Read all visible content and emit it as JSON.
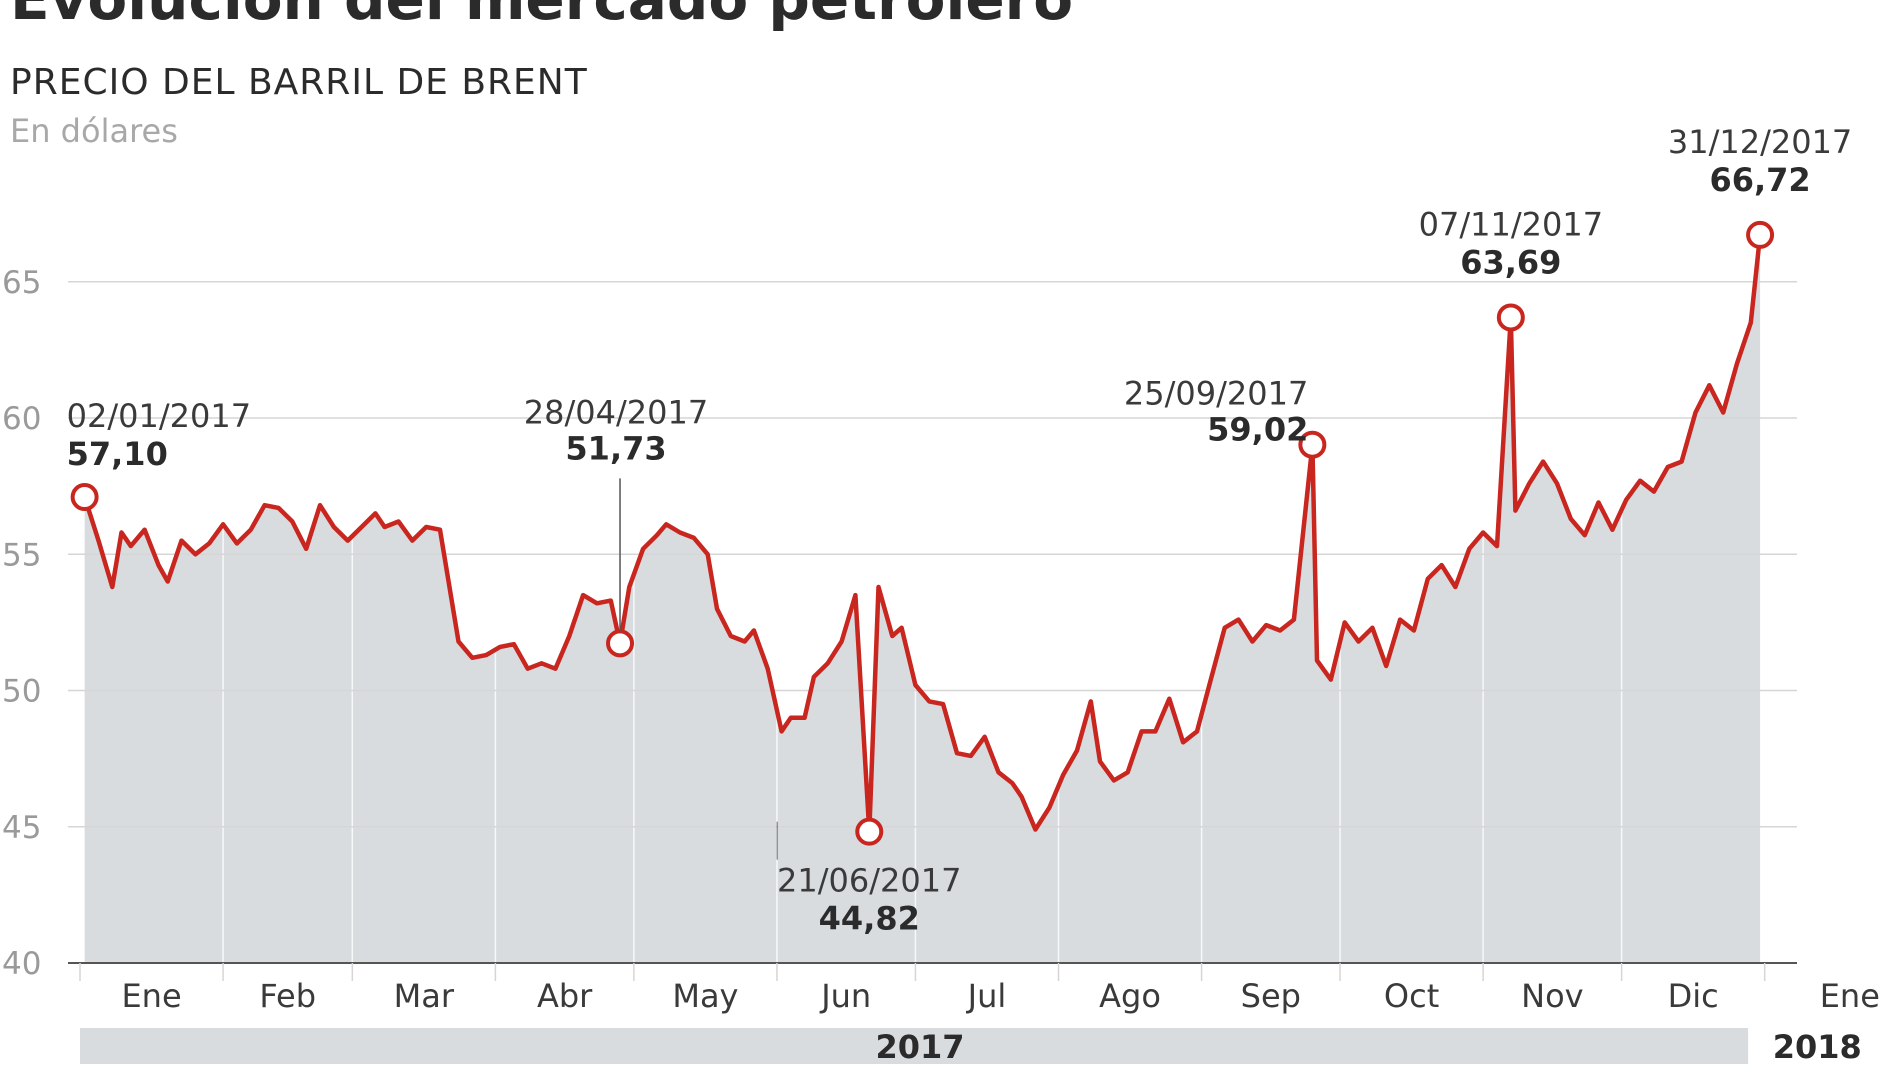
{
  "header": {
    "title": "Evolución del mercado petrolero",
    "subtitle": "PRECIO DEL BARRIL DE BRENT",
    "unit": "En dólares"
  },
  "colors": {
    "line": "#c8261e",
    "area": "#d8dcdf",
    "grid": "#d6d6d6",
    "axis": "#555555",
    "year_band": "#d8dcdf"
  },
  "chart_data": {
    "type": "area",
    "title": "Evolución del mercado petrolero",
    "subtitle": "PRECIO DEL BARRIL DE BRENT",
    "ylabel": "En dólares",
    "xlabel": "",
    "ylim": [
      40,
      68
    ],
    "yticks": [
      40,
      45,
      50,
      55,
      60,
      65
    ],
    "xlim": [
      "2017-01-01",
      "2018-01-08"
    ],
    "grid": true,
    "month_labels": [
      "Ene",
      "Feb",
      "Mar",
      "Abr",
      "May",
      "Jun",
      "Jul",
      "Ago",
      "Sep",
      "Oct",
      "Nov",
      "Dic",
      "Ene"
    ],
    "month_starts": [
      "2017-01-01",
      "2017-02-01",
      "2017-03-01",
      "2017-04-01",
      "2017-05-01",
      "2017-06-01",
      "2017-07-01",
      "2017-08-01",
      "2017-09-01",
      "2017-10-01",
      "2017-11-01",
      "2017-12-01",
      "2018-01-01"
    ],
    "years": [
      {
        "label": "2017",
        "start": "2017-01-01",
        "end": "2017-12-31"
      },
      {
        "label": "2018",
        "start": "2018-01-01",
        "end": "2018-01-08"
      }
    ],
    "series": [
      {
        "points": [
          [
            "2017-01-02",
            57.1
          ],
          [
            "2017-01-05",
            55.5
          ],
          [
            "2017-01-08",
            53.8
          ],
          [
            "2017-01-10",
            55.8
          ],
          [
            "2017-01-12",
            55.3
          ],
          [
            "2017-01-15",
            55.9
          ],
          [
            "2017-01-18",
            54.6
          ],
          [
            "2017-01-20",
            54.0
          ],
          [
            "2017-01-23",
            55.5
          ],
          [
            "2017-01-26",
            55.0
          ],
          [
            "2017-01-29",
            55.4
          ],
          [
            "2017-02-01",
            56.1
          ],
          [
            "2017-02-04",
            55.4
          ],
          [
            "2017-02-07",
            55.9
          ],
          [
            "2017-02-10",
            56.8
          ],
          [
            "2017-02-13",
            56.7
          ],
          [
            "2017-02-16",
            56.2
          ],
          [
            "2017-02-19",
            55.2
          ],
          [
            "2017-02-22",
            56.8
          ],
          [
            "2017-02-25",
            56.0
          ],
          [
            "2017-02-28",
            55.5
          ],
          [
            "2017-03-03",
            56.0
          ],
          [
            "2017-03-06",
            56.5
          ],
          [
            "2017-03-08",
            56.0
          ],
          [
            "2017-03-11",
            56.2
          ],
          [
            "2017-03-14",
            55.5
          ],
          [
            "2017-03-17",
            56.0
          ],
          [
            "2017-03-20",
            55.9
          ],
          [
            "2017-03-24",
            51.8
          ],
          [
            "2017-03-27",
            51.2
          ],
          [
            "2017-03-30",
            51.3
          ],
          [
            "2017-04-02",
            51.6
          ],
          [
            "2017-04-05",
            51.7
          ],
          [
            "2017-04-08",
            50.8
          ],
          [
            "2017-04-11",
            51.0
          ],
          [
            "2017-04-14",
            50.8
          ],
          [
            "2017-04-17",
            52.0
          ],
          [
            "2017-04-20",
            53.5
          ],
          [
            "2017-04-23",
            53.2
          ],
          [
            "2017-04-26",
            53.3
          ],
          [
            "2017-04-28",
            51.73
          ],
          [
            "2017-04-30",
            53.8
          ],
          [
            "2017-05-03",
            55.2
          ],
          [
            "2017-05-06",
            55.7
          ],
          [
            "2017-05-08",
            56.1
          ],
          [
            "2017-05-11",
            55.8
          ],
          [
            "2017-05-14",
            55.6
          ],
          [
            "2017-05-17",
            55.0
          ],
          [
            "2017-05-19",
            53.0
          ],
          [
            "2017-05-22",
            52.0
          ],
          [
            "2017-05-25",
            51.8
          ],
          [
            "2017-05-27",
            52.2
          ],
          [
            "2017-05-30",
            50.8
          ],
          [
            "2017-06-02",
            48.5
          ],
          [
            "2017-06-04",
            49.0
          ],
          [
            "2017-06-07",
            49.0
          ],
          [
            "2017-06-09",
            50.5
          ],
          [
            "2017-06-12",
            51.0
          ],
          [
            "2017-06-15",
            51.8
          ],
          [
            "2017-06-18",
            53.5
          ],
          [
            "2017-06-21",
            44.82
          ],
          [
            "2017-06-23",
            53.8
          ],
          [
            "2017-06-26",
            52.0
          ],
          [
            "2017-06-28",
            52.3
          ],
          [
            "2017-07-01",
            50.2
          ],
          [
            "2017-07-04",
            49.6
          ],
          [
            "2017-07-07",
            49.5
          ],
          [
            "2017-07-10",
            47.7
          ],
          [
            "2017-07-13",
            47.6
          ],
          [
            "2017-07-16",
            48.3
          ],
          [
            "2017-07-19",
            47.0
          ],
          [
            "2017-07-22",
            46.6
          ],
          [
            "2017-07-24",
            46.1
          ],
          [
            "2017-07-27",
            44.9
          ],
          [
            "2017-07-30",
            45.7
          ],
          [
            "2017-08-02",
            46.9
          ],
          [
            "2017-08-05",
            47.8
          ],
          [
            "2017-08-08",
            49.6
          ],
          [
            "2017-08-10",
            47.4
          ],
          [
            "2017-08-13",
            46.7
          ],
          [
            "2017-08-16",
            47.0
          ],
          [
            "2017-08-19",
            48.5
          ],
          [
            "2017-08-22",
            48.5
          ],
          [
            "2017-08-25",
            49.7
          ],
          [
            "2017-08-28",
            48.1
          ],
          [
            "2017-08-31",
            48.5
          ],
          [
            "2017-09-03",
            50.4
          ],
          [
            "2017-09-06",
            52.3
          ],
          [
            "2017-09-09",
            52.6
          ],
          [
            "2017-09-12",
            51.8
          ],
          [
            "2017-09-15",
            52.4
          ],
          [
            "2017-09-18",
            52.2
          ],
          [
            "2017-09-21",
            52.6
          ],
          [
            "2017-09-25",
            59.02
          ],
          [
            "2017-09-26",
            51.1
          ],
          [
            "2017-09-29",
            50.4
          ],
          [
            "2017-10-02",
            52.5
          ],
          [
            "2017-10-05",
            51.8
          ],
          [
            "2017-10-08",
            52.3
          ],
          [
            "2017-10-11",
            50.9
          ],
          [
            "2017-10-14",
            52.6
          ],
          [
            "2017-10-17",
            52.2
          ],
          [
            "2017-10-20",
            54.1
          ],
          [
            "2017-10-23",
            54.6
          ],
          [
            "2017-10-26",
            53.8
          ],
          [
            "2017-10-29",
            55.2
          ],
          [
            "2017-11-01",
            55.8
          ],
          [
            "2017-11-04",
            55.3
          ],
          [
            "2017-11-07",
            63.69
          ],
          [
            "2017-11-08",
            56.6
          ],
          [
            "2017-11-11",
            57.6
          ],
          [
            "2017-11-14",
            58.4
          ],
          [
            "2017-11-17",
            57.6
          ],
          [
            "2017-11-20",
            56.3
          ],
          [
            "2017-11-23",
            55.7
          ],
          [
            "2017-11-26",
            56.9
          ],
          [
            "2017-11-29",
            55.9
          ],
          [
            "2017-12-02",
            57.0
          ],
          [
            "2017-12-05",
            57.7
          ],
          [
            "2017-12-08",
            57.3
          ],
          [
            "2017-12-11",
            58.2
          ],
          [
            "2017-12-14",
            58.4
          ],
          [
            "2017-12-17",
            60.2
          ],
          [
            "2017-12-20",
            61.2
          ],
          [
            "2017-12-23",
            60.2
          ],
          [
            "2017-12-26",
            62.0
          ],
          [
            "2017-12-29",
            63.5
          ],
          [
            "2017-12-31",
            66.72
          ]
        ]
      }
    ],
    "annotations": [
      {
        "date": "02/01/2017",
        "value": "57,10",
        "x": "2017-01-02",
        "y": 57.1,
        "label_side": "above-right"
      },
      {
        "date": "28/04/2017",
        "value": "51,73",
        "x": "2017-04-28",
        "y": 51.73,
        "label_side": "above-leader"
      },
      {
        "date": "21/06/2017",
        "value": "44,82",
        "x": "2017-06-21",
        "y": 44.82,
        "label_side": "below"
      },
      {
        "date": "25/09/2017",
        "value": "59,02",
        "x": "2017-09-25",
        "y": 59.02,
        "label_side": "above-left"
      },
      {
        "date": "07/11/2017",
        "value": "63,69",
        "x": "2017-11-07",
        "y": 63.69,
        "label_side": "above"
      },
      {
        "date": "31/12/2017",
        "value": "66,72",
        "x": "2017-12-31",
        "y": 66.72,
        "label_side": "above"
      }
    ]
  }
}
